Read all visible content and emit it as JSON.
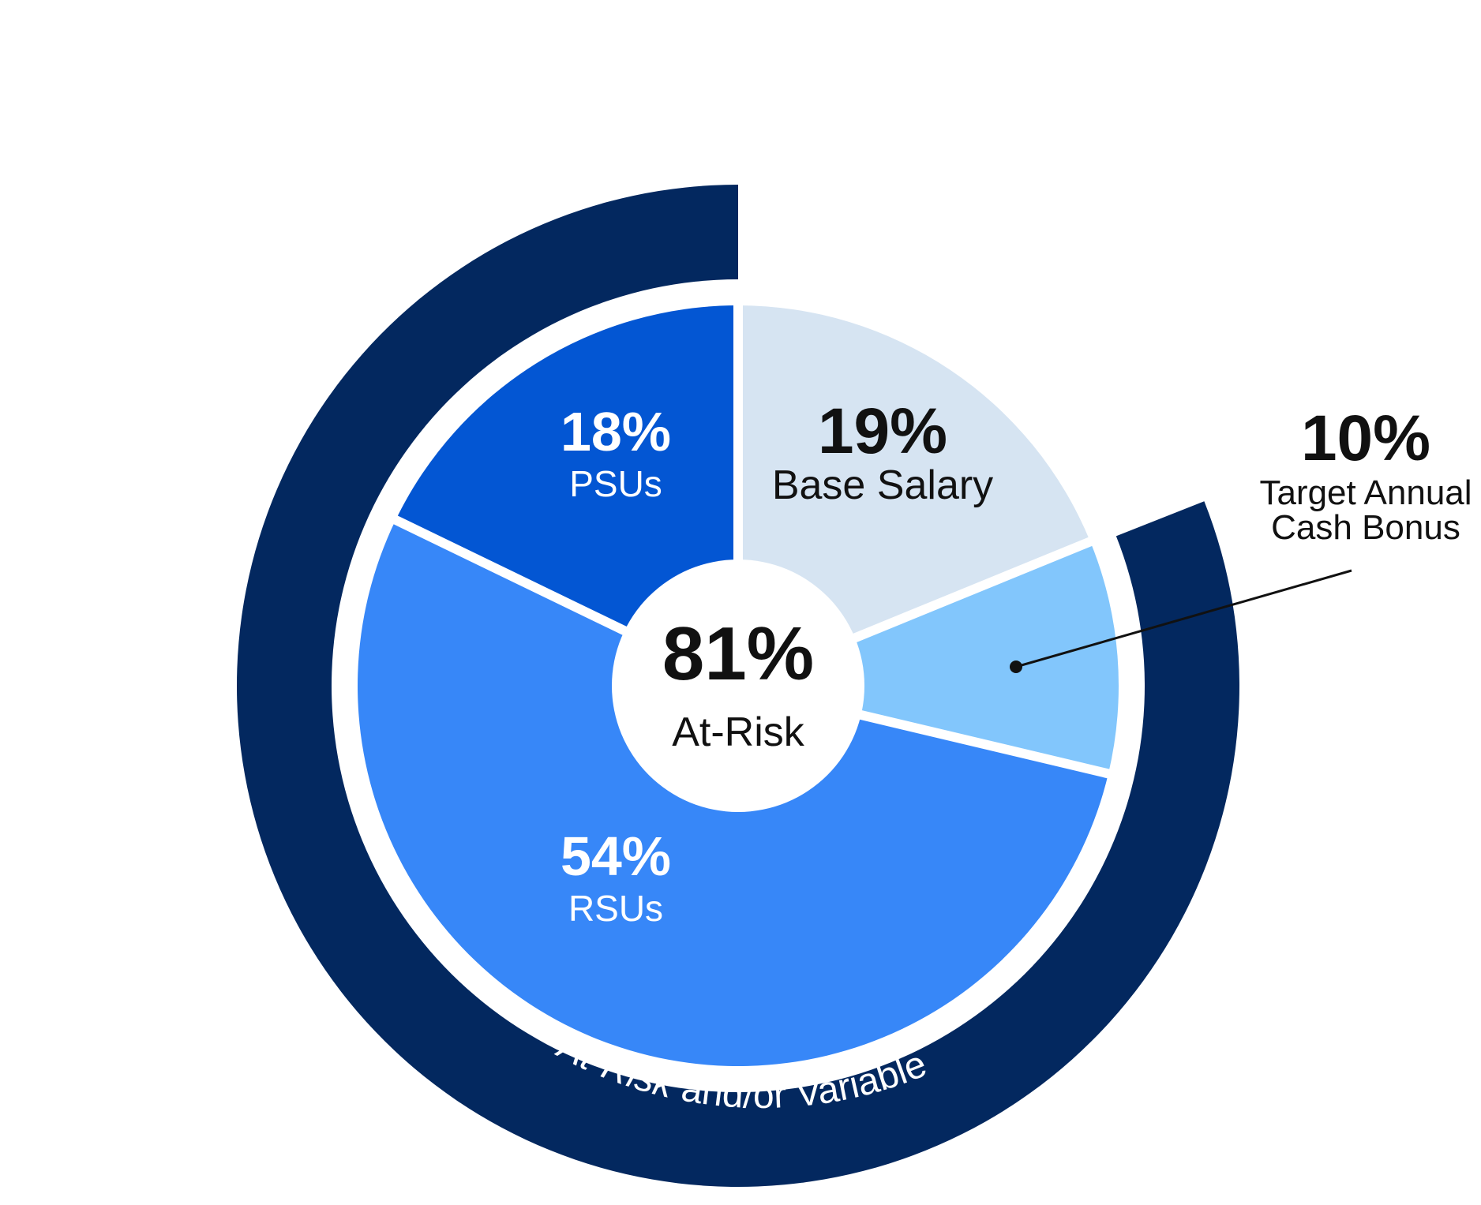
{
  "chart_data": {
    "type": "pie",
    "center": {
      "value": "81%",
      "label": "At-Risk"
    },
    "slices": [
      {
        "key": "base",
        "value_text": "19%",
        "label_lines": [
          "Base Salary"
        ],
        "value": 19,
        "color": "#d6e4f2",
        "text_color": "#111111"
      },
      {
        "key": "bonus",
        "value_text": "10%",
        "label_lines": [
          "Target Annual",
          "Cash Bonus"
        ],
        "value": 10,
        "color": "#82c6fc",
        "text_color": "#111111"
      },
      {
        "key": "rsu",
        "value_text": "54%",
        "label_lines": [
          "RSUs"
        ],
        "value": 54,
        "color": "#3787f8",
        "text_color": "#ffffff"
      },
      {
        "key": "psu",
        "value_text": "18%",
        "label_lines": [
          "PSUs"
        ],
        "value": 18,
        "color": "#0356d3",
        "text_color": "#ffffff"
      }
    ],
    "outer_ring": {
      "label_italic": "At-Risk",
      "label_rest": " and/or Variable",
      "value": 81,
      "color": "#03285f",
      "text_color": "#ffffff"
    },
    "callout_color": "#111111"
  }
}
